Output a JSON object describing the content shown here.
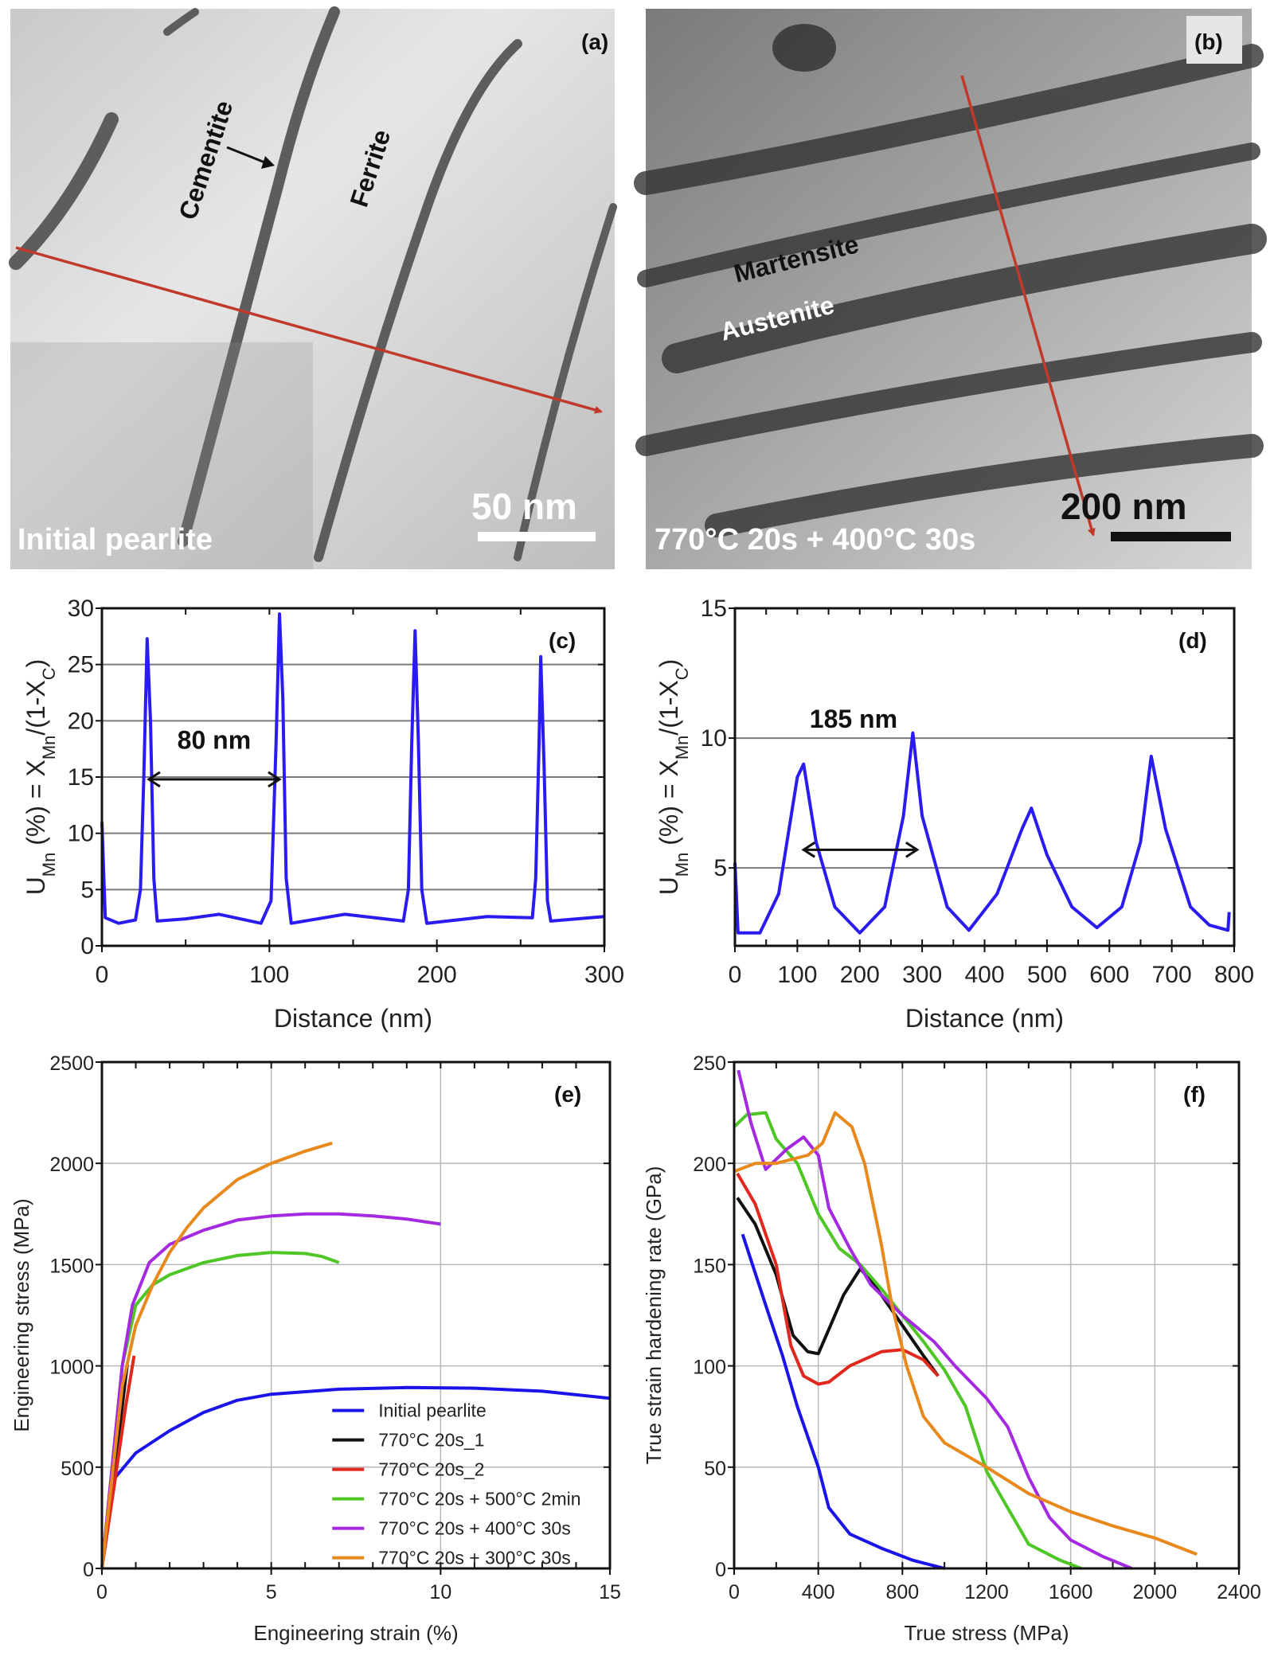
{
  "panel_a": {
    "label": "(a)",
    "phase_1": "Cementite",
    "phase_2": "Ferrite",
    "scale_bar": "50 nm",
    "caption": "Initial pearlite",
    "arrow_color": "#c0392b"
  },
  "panel_b": {
    "label": "(b)",
    "phase_1": "Martensite",
    "phase_2": "Austenite",
    "scale_bar": "200 nm",
    "caption": "770°C 20s + 400°C 30s",
    "arrow_color": "#c0392b"
  },
  "chart_data": [
    {
      "panel": "(c)",
      "type": "line",
      "xlabel": "Distance (nm)",
      "ylabel_parts": [
        {
          "t": "U"
        },
        {
          "t": "Mn",
          "sub": true
        },
        {
          "t": " (%) = X"
        },
        {
          "t": "Mn",
          "sub": true
        },
        {
          "t": "/(1-X"
        },
        {
          "t": "C",
          "sub": true
        },
        {
          "t": ")"
        }
      ],
      "xlim": [
        0,
        300
      ],
      "ylim": [
        0,
        30
      ],
      "x_ticks": [
        0,
        100,
        200,
        300
      ],
      "y_ticks": [
        0,
        5,
        10,
        15,
        20,
        25,
        30
      ],
      "grid": "horizontal",
      "annotation": {
        "text": "80 nm",
        "arrow_from": 28,
        "arrow_to": 106,
        "arrow_y": 14.8,
        "text_x": 67,
        "text_y": 17.5
      },
      "series": [
        {
          "color": "#2a1bf0",
          "points": [
            [
              0,
              11
            ],
            [
              2,
              2.5
            ],
            [
              10,
              2
            ],
            [
              20,
              2.3
            ],
            [
              23,
              5
            ],
            [
              25,
              15
            ],
            [
              27,
              27.3
            ],
            [
              29,
              20
            ],
            [
              31,
              6
            ],
            [
              33,
              2.2
            ],
            [
              50,
              2.4
            ],
            [
              70,
              2.8
            ],
            [
              95,
              2.0
            ],
            [
              101,
              4
            ],
            [
              104,
              18
            ],
            [
              106,
              29.5
            ],
            [
              108,
              22
            ],
            [
              110,
              6
            ],
            [
              113,
              2
            ],
            [
              145,
              2.8
            ],
            [
              180,
              2.2
            ],
            [
              183,
              5
            ],
            [
              185,
              18
            ],
            [
              187,
              28
            ],
            [
              189,
              18
            ],
            [
              191,
              5
            ],
            [
              194,
              2
            ],
            [
              230,
              2.6
            ],
            [
              257,
              2.5
            ],
            [
              259,
              6
            ],
            [
              261,
              18
            ],
            [
              262,
              25.7
            ],
            [
              264,
              16
            ],
            [
              266,
              4
            ],
            [
              268,
              2.2
            ],
            [
              300,
              2.6
            ]
          ]
        }
      ]
    },
    {
      "panel": "(d)",
      "type": "line",
      "xlabel": "Distance (nm)",
      "ylabel_parts": [
        {
          "t": "U"
        },
        {
          "t": "Mn",
          "sub": true
        },
        {
          "t": " (%) = X"
        },
        {
          "t": "Mn",
          "sub": true
        },
        {
          "t": "/(1-X"
        },
        {
          "t": "C",
          "sub": true
        },
        {
          "t": ")"
        }
      ],
      "xlim": [
        0,
        800
      ],
      "ylim": [
        2,
        15
      ],
      "x_ticks": [
        0,
        100,
        200,
        300,
        400,
        500,
        600,
        700,
        800
      ],
      "y_ticks": [
        5,
        10,
        15
      ],
      "grid": "horizontal",
      "annotation": {
        "text": "185 nm",
        "arrow_from": 110,
        "arrow_to": 292,
        "arrow_y": 5.7,
        "text_x": 190,
        "text_y": 10.4
      },
      "series": [
        {
          "color": "#2a1bf0",
          "points": [
            [
              0,
              5.2
            ],
            [
              5,
              2.5
            ],
            [
              40,
              2.5
            ],
            [
              70,
              4
            ],
            [
              100,
              8.5
            ],
            [
              110,
              9
            ],
            [
              130,
              6
            ],
            [
              160,
              3.5
            ],
            [
              200,
              2.5
            ],
            [
              240,
              3.5
            ],
            [
              270,
              7
            ],
            [
              285,
              10.2
            ],
            [
              300,
              7
            ],
            [
              340,
              3.5
            ],
            [
              375,
              2.6
            ],
            [
              420,
              4
            ],
            [
              460,
              6.5
            ],
            [
              475,
              7.3
            ],
            [
              500,
              5.5
            ],
            [
              540,
              3.5
            ],
            [
              580,
              2.7
            ],
            [
              620,
              3.5
            ],
            [
              650,
              6
            ],
            [
              667,
              9.3
            ],
            [
              690,
              6.5
            ],
            [
              730,
              3.5
            ],
            [
              760,
              2.8
            ],
            [
              790,
              2.6
            ],
            [
              792,
              3.3
            ]
          ]
        }
      ]
    },
    {
      "panel": "(e)",
      "type": "line",
      "xlabel": "Engineering strain (%)",
      "ylabel": "Engineering stress (MPa)",
      "xlim": [
        0,
        15
      ],
      "ylim": [
        0,
        2500
      ],
      "x_ticks": [
        0,
        5,
        10,
        15
      ],
      "y_ticks": [
        0,
        500,
        1000,
        1500,
        2000,
        2500
      ],
      "grid": "both",
      "legend": "bottom-right",
      "series": [
        {
          "name": "Initial pearlite",
          "color": "#1a14e8",
          "points": [
            [
              0,
              0
            ],
            [
              0.2,
              300
            ],
            [
              0.4,
              450
            ],
            [
              1,
              570
            ],
            [
              2,
              680
            ],
            [
              3,
              770
            ],
            [
              4,
              830
            ],
            [
              5,
              860
            ],
            [
              7,
              885
            ],
            [
              9,
              893
            ],
            [
              11,
              890
            ],
            [
              13,
              875
            ],
            [
              15,
              840
            ]
          ]
        },
        {
          "name": "770°C 20s_1",
          "color": "#111111",
          "points": [
            [
              0,
              0
            ],
            [
              0.3,
              400
            ],
            [
              0.6,
              800
            ],
            [
              0.75,
              1010
            ]
          ]
        },
        {
          "name": "770°C 20s_2",
          "color": "#e0281e",
          "points": [
            [
              0,
              0
            ],
            [
              0.4,
              450
            ],
            [
              0.7,
              800
            ],
            [
              0.95,
              1050
            ]
          ]
        },
        {
          "name": "770°C 20s + 500°C 2min",
          "color": "#4ec626",
          "points": [
            [
              0,
              0
            ],
            [
              0.3,
              500
            ],
            [
              0.6,
              1000
            ],
            [
              1,
              1300
            ],
            [
              1.5,
              1400
            ],
            [
              2,
              1450
            ],
            [
              3,
              1510
            ],
            [
              4,
              1545
            ],
            [
              5,
              1560
            ],
            [
              6,
              1555
            ],
            [
              6.5,
              1540
            ],
            [
              7,
              1510
            ]
          ]
        },
        {
          "name": "770°C 20s + 400°C 30s",
          "color": "#a32ae0",
          "points": [
            [
              0,
              0
            ],
            [
              0.3,
              500
            ],
            [
              0.6,
              1000
            ],
            [
              0.9,
              1300
            ],
            [
              1.4,
              1510
            ],
            [
              2,
              1600
            ],
            [
              3,
              1670
            ],
            [
              4,
              1720
            ],
            [
              5,
              1740
            ],
            [
              6,
              1750
            ],
            [
              7,
              1750
            ],
            [
              8,
              1740
            ],
            [
              9,
              1725
            ],
            [
              10,
              1700
            ]
          ]
        },
        {
          "name": "770°C 20s + 300°C 30s",
          "color": "#e8891e",
          "points": [
            [
              0,
              0
            ],
            [
              0.3,
              450
            ],
            [
              0.6,
              900
            ],
            [
              1,
              1200
            ],
            [
              1.5,
              1400
            ],
            [
              2,
              1560
            ],
            [
              2.5,
              1680
            ],
            [
              3,
              1780
            ],
            [
              4,
              1920
            ],
            [
              5,
              2000
            ],
            [
              6,
              2060
            ],
            [
              6.8,
              2100
            ]
          ]
        }
      ]
    },
    {
      "panel": "(f)",
      "type": "line",
      "xlabel": "True stress (MPa)",
      "ylabel": "True strain hardening rate (GPa)",
      "xlim": [
        0,
        2400
      ],
      "ylim": [
        0,
        250
      ],
      "x_ticks": [
        0,
        400,
        800,
        1200,
        1600,
        2000,
        2400
      ],
      "y_ticks": [
        0,
        50,
        100,
        150,
        200,
        250
      ],
      "grid": "both",
      "series": [
        {
          "color": "#1a14e8",
          "points": [
            [
              40,
              165
            ],
            [
              150,
              130
            ],
            [
              230,
              105
            ],
            [
              300,
              80
            ],
            [
              400,
              50
            ],
            [
              450,
              30
            ],
            [
              550,
              17
            ],
            [
              700,
              10
            ],
            [
              850,
              4
            ],
            [
              1000,
              0
            ]
          ]
        },
        {
          "color": "#111111",
          "points": [
            [
              15,
              183
            ],
            [
              100,
              170
            ],
            [
              200,
              145
            ],
            [
              280,
              115
            ],
            [
              350,
              107
            ],
            [
              400,
              106
            ],
            [
              450,
              118
            ],
            [
              520,
              135
            ],
            [
              600,
              148
            ],
            [
              680,
              138
            ],
            [
              800,
              120
            ],
            [
              900,
              105
            ],
            [
              970,
              95
            ]
          ]
        },
        {
          "color": "#e0281e",
          "points": [
            [
              15,
              195
            ],
            [
              100,
              180
            ],
            [
              200,
              150
            ],
            [
              270,
              110
            ],
            [
              330,
              95
            ],
            [
              400,
              91
            ],
            [
              450,
              92
            ],
            [
              550,
              100
            ],
            [
              700,
              107
            ],
            [
              800,
              108
            ],
            [
              900,
              103
            ],
            [
              970,
              95
            ]
          ]
        },
        {
          "color": "#4ec626",
          "points": [
            [
              0,
              218
            ],
            [
              60,
              224
            ],
            [
              150,
              225
            ],
            [
              200,
              212
            ],
            [
              300,
              200
            ],
            [
              400,
              175
            ],
            [
              500,
              158
            ],
            [
              600,
              150
            ],
            [
              700,
              138
            ],
            [
              800,
              125
            ],
            [
              900,
              112
            ],
            [
              1000,
              98
            ],
            [
              1100,
              80
            ],
            [
              1200,
              48
            ],
            [
              1300,
              30
            ],
            [
              1400,
              12
            ],
            [
              1550,
              4
            ],
            [
              1650,
              0
            ]
          ]
        },
        {
          "color": "#a32ae0",
          "points": [
            [
              20,
              246
            ],
            [
              80,
              220
            ],
            [
              150,
              197
            ],
            [
              250,
              207
            ],
            [
              330,
              213
            ],
            [
              400,
              204
            ],
            [
              450,
              178
            ],
            [
              550,
              158
            ],
            [
              650,
              140
            ],
            [
              800,
              125
            ],
            [
              950,
              112
            ],
            [
              1050,
              100
            ],
            [
              1200,
              84
            ],
            [
              1300,
              70
            ],
            [
              1400,
              45
            ],
            [
              1500,
              25
            ],
            [
              1600,
              14
            ],
            [
              1750,
              6
            ],
            [
              1890,
              0
            ]
          ]
        },
        {
          "color": "#e8891e",
          "points": [
            [
              0,
              196
            ],
            [
              100,
              200
            ],
            [
              200,
              200
            ],
            [
              350,
              204
            ],
            [
              420,
              210
            ],
            [
              480,
              225
            ],
            [
              560,
              218
            ],
            [
              620,
              200
            ],
            [
              700,
              160
            ],
            [
              750,
              130
            ],
            [
              820,
              100
            ],
            [
              900,
              75
            ],
            [
              1000,
              62
            ],
            [
              1200,
              50
            ],
            [
              1400,
              37
            ],
            [
              1600,
              28
            ],
            [
              1800,
              21
            ],
            [
              2000,
              15
            ],
            [
              2200,
              7
            ]
          ]
        }
      ]
    }
  ]
}
